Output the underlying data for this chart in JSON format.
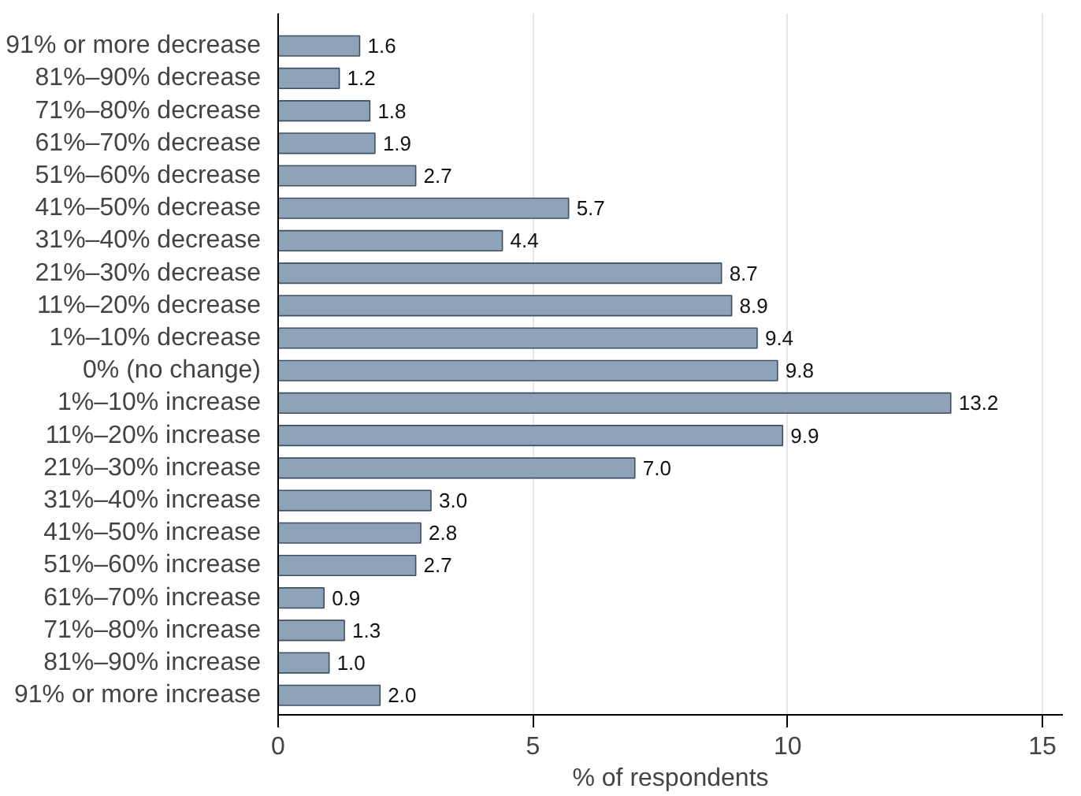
{
  "chart_data": {
    "type": "bar",
    "orientation": "horizontal",
    "xlabel": "% of respondents",
    "categories": [
      "91% or more decrease",
      "81%–90% decrease",
      "71%–80% decrease",
      "61%–70% decrease",
      "51%–60% decrease",
      "41%–50% decrease",
      "31%–40% decrease",
      "21%–30% decrease",
      "11%–20% decrease",
      "1%–10% decrease",
      "0% (no change)",
      "1%–10% increase",
      "11%–20% increase",
      "21%–30% increase",
      "31%–40% increase",
      "41%–50% increase",
      "51%–60% increase",
      "61%–70% increase",
      "71%–80% increase",
      "81%–90% increase",
      "91% or more increase"
    ],
    "values": [
      1.6,
      1.2,
      1.8,
      1.9,
      2.7,
      5.7,
      4.4,
      8.7,
      8.9,
      9.4,
      9.8,
      13.2,
      9.9,
      7.0,
      3.0,
      2.8,
      2.7,
      0.9,
      1.3,
      1.0,
      2.0
    ],
    "value_labels": [
      "1.6",
      "1.2",
      "1.8",
      "1.9",
      "2.7",
      "5.7",
      "4.4",
      "8.7",
      "8.9",
      "9.4",
      "9.8",
      "13.2",
      "9.9",
      "7.0",
      "3.0",
      "2.8",
      "2.7",
      "0.9",
      "1.3",
      "1.0",
      "2.0"
    ],
    "color": "#8fa3b8",
    "xlim": [
      0,
      15.4
    ],
    "xticks": [
      0,
      5,
      10,
      15
    ],
    "grid": "x"
  }
}
